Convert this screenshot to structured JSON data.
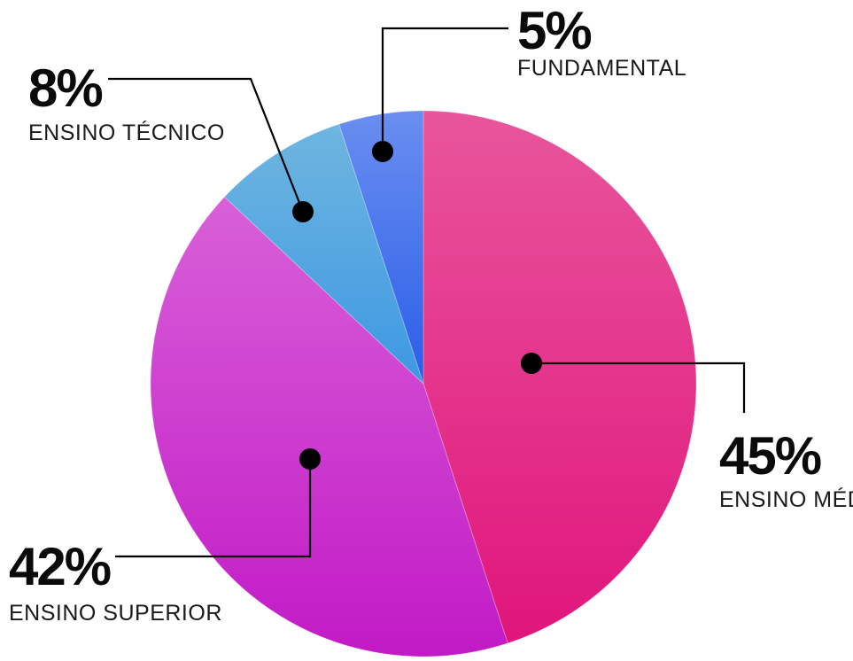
{
  "chart_data": {
    "type": "pie",
    "slices": [
      {
        "label": "ENSINO MÉDIO",
        "value": 45,
        "value_label": "45%",
        "color_top": "#e8559c",
        "color_bottom": "#e0157c"
      },
      {
        "label": "ENSINO SUPERIOR",
        "value": 42,
        "value_label": "42%",
        "color_top": "#d860d8",
        "color_bottom": "#c21ac6"
      },
      {
        "label": "ENSINO TÉCNICO",
        "value": 8,
        "value_label": "8%",
        "color_top": "#6fb6e0",
        "color_bottom": "#3d98e2"
      },
      {
        "label": "FUNDAMENTAL",
        "value": 5,
        "value_label": "5%",
        "color_top": "#6a8ef0",
        "color_bottom": "#2a5ee8"
      }
    ],
    "start": "top",
    "direction": "clockwise",
    "legend": "none",
    "leader_color": "#000000"
  }
}
